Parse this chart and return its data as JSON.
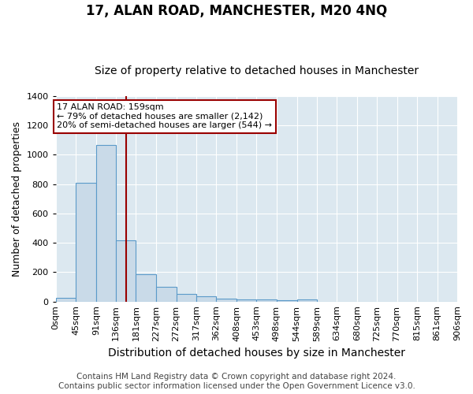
{
  "title": "17, ALAN ROAD, MANCHESTER, M20 4NQ",
  "subtitle": "Size of property relative to detached houses in Manchester",
  "xlabel": "Distribution of detached houses by size in Manchester",
  "ylabel": "Number of detached properties",
  "bin_edges": [
    0,
    45,
    91,
    136,
    181,
    227,
    272,
    317,
    362,
    408,
    453,
    498,
    544,
    589,
    634,
    680,
    725,
    770,
    815,
    861,
    906
  ],
  "bar_heights": [
    25,
    810,
    1065,
    415,
    185,
    100,
    52,
    35,
    20,
    15,
    12,
    10,
    12,
    0,
    0,
    0,
    0,
    0,
    0,
    0
  ],
  "bar_color": "#c9dae8",
  "bar_edgecolor": "#5b9ac9",
  "property_size": 159,
  "vline_color": "#990000",
  "annotation_text": "17 ALAN ROAD: 159sqm\n← 79% of detached houses are smaller (2,142)\n20% of semi-detached houses are larger (544) →",
  "annotation_box_edgecolor": "#990000",
  "annotation_box_facecolor": "#ffffff",
  "ylim": [
    0,
    1400
  ],
  "yticks": [
    0,
    200,
    400,
    600,
    800,
    1000,
    1200,
    1400
  ],
  "footer_text": "Contains HM Land Registry data © Crown copyright and database right 2024.\nContains public sector information licensed under the Open Government Licence v3.0.",
  "title_fontsize": 12,
  "subtitle_fontsize": 10,
  "xlabel_fontsize": 10,
  "ylabel_fontsize": 9,
  "tick_fontsize": 8,
  "annotation_fontsize": 8,
  "footer_fontsize": 7.5,
  "bg_color": "#dce8f0"
}
